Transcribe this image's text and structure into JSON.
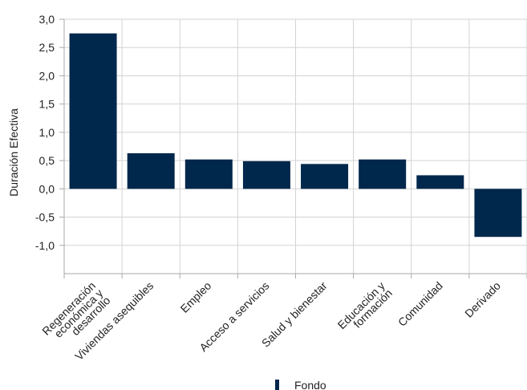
{
  "chart_data": {
    "type": "bar",
    "categories": [
      "Regeneración económica y desarrollo",
      "Viviendas asequibles",
      "Empleo",
      "Acceso a servicios",
      "Salud y bienestar",
      "Educación y formación",
      "Comunidad",
      "Derivado"
    ],
    "category_lines": [
      [
        "Regeneración",
        "económica y",
        "desarrollo"
      ],
      [
        "Viviendas asequibles"
      ],
      [
        "Empleo"
      ],
      [
        "Acceso a servicios"
      ],
      [
        "Salud y bienestar"
      ],
      [
        "Educación y",
        "formación"
      ],
      [
        "Comunidad"
      ],
      [
        "Derivado"
      ]
    ],
    "series": [
      {
        "name": "Fondo",
        "values": [
          2.75,
          0.63,
          0.52,
          0.49,
          0.44,
          0.52,
          0.24,
          -0.85
        ]
      }
    ],
    "ylabel": "Duración Efectiva",
    "xlabel": "",
    "ylim": [
      -1.5,
      3.0
    ],
    "yticks": [
      3.0,
      2.5,
      2.0,
      1.5,
      1.0,
      0.5,
      0.0,
      -0.5,
      -1.0
    ],
    "ytick_labels": [
      "3,0",
      "2,5",
      "2,0",
      "1,5",
      "1,0",
      "0,5",
      "0,0",
      "-0,5",
      "-1,0"
    ],
    "grid": true,
    "legend_position": "bottom-center",
    "colors": {
      "bar": "#00274c",
      "grid": "#d3d3d3",
      "axis": "#a9a9a9"
    }
  }
}
